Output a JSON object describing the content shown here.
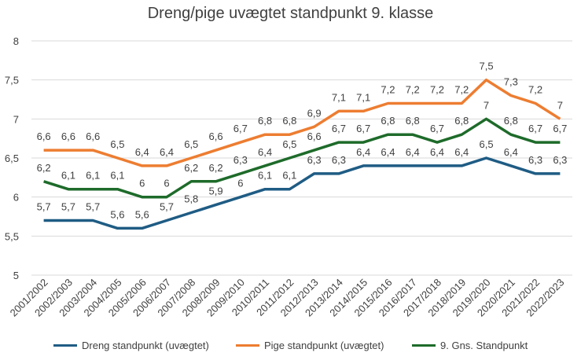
{
  "chart_data": {
    "type": "line",
    "title": "Dreng/pige uvægtet standpunkt 9. klasse",
    "categories": [
      "2001/2002",
      "2002/2003",
      "2003/2004",
      "2004/2005",
      "2005/2006",
      "2006/2007",
      "2007/2008",
      "2008/2009",
      "2009/2010",
      "2010/2011",
      "2011/2012",
      "2012/2013",
      "2013/2014",
      "2014/2015",
      "2015/2016",
      "2016/2017",
      "2017/2018",
      "2018/2019",
      "2019/2020",
      "2020/2021",
      "2021/2022",
      "2022/2023"
    ],
    "ylim": [
      5,
      8
    ],
    "yticks": [
      "5",
      "5,5",
      "6",
      "6,5",
      "7",
      "7,5",
      "8"
    ],
    "grid": true,
    "legend_position": "bottom",
    "series": [
      {
        "name": "Dreng standpunkt (uvægtet)",
        "color": "#1f5c84",
        "values": [
          5.7,
          5.7,
          5.7,
          5.6,
          5.6,
          5.7,
          5.8,
          5.9,
          6.0,
          6.1,
          6.1,
          6.3,
          6.3,
          6.4,
          6.4,
          6.4,
          6.4,
          6.4,
          6.5,
          6.4,
          6.3,
          6.3
        ],
        "labels": [
          "5,7",
          "5,7",
          "5,7",
          "5,6",
          "5,6",
          "5,7",
          "5,8",
          "5,9",
          "6",
          "6,1",
          "6,1",
          "6,3",
          "6,3",
          "6,4",
          "6,4",
          "6,4",
          "6,4",
          "6,4",
          "6,5",
          "6,4",
          "6,3",
          "6,3"
        ]
      },
      {
        "name": "Pige standpunkt (uvægtet)",
        "color": "#ed7d31",
        "values": [
          6.6,
          6.6,
          6.6,
          6.5,
          6.4,
          6.4,
          6.5,
          6.6,
          6.7,
          6.8,
          6.8,
          6.9,
          7.1,
          7.1,
          7.2,
          7.2,
          7.2,
          7.2,
          7.5,
          7.3,
          7.2,
          7.0
        ],
        "labels": [
          "6,6",
          "6,6",
          "6,6",
          "6,5",
          "6,4",
          "6,4",
          "6,5",
          "6,6",
          "6,7",
          "6,8",
          "6,8",
          "6,9",
          "7,1",
          "7,1",
          "7,2",
          "7,2",
          "7,2",
          "7,2",
          "7,5",
          "7,3",
          "7,2",
          "7"
        ]
      },
      {
        "name": "9. Gns. Standpunkt",
        "color": "#1e6b2a",
        "values": [
          6.2,
          6.1,
          6.1,
          6.1,
          6.0,
          6.0,
          6.2,
          6.2,
          6.3,
          6.4,
          6.5,
          6.6,
          6.7,
          6.7,
          6.8,
          6.8,
          6.7,
          6.8,
          7.0,
          6.8,
          6.7,
          6.7
        ],
        "labels": [
          "6,2",
          "6,1",
          "6,1",
          "6,1",
          "6",
          "6",
          "6,2",
          "6,2",
          "6,3",
          "6,4",
          "6,5",
          "6,6",
          "6,7",
          "6,7",
          "6,8",
          "6,8",
          "6,7",
          "6,8",
          "7",
          "6,8",
          "6,7",
          "6,7"
        ]
      }
    ]
  }
}
